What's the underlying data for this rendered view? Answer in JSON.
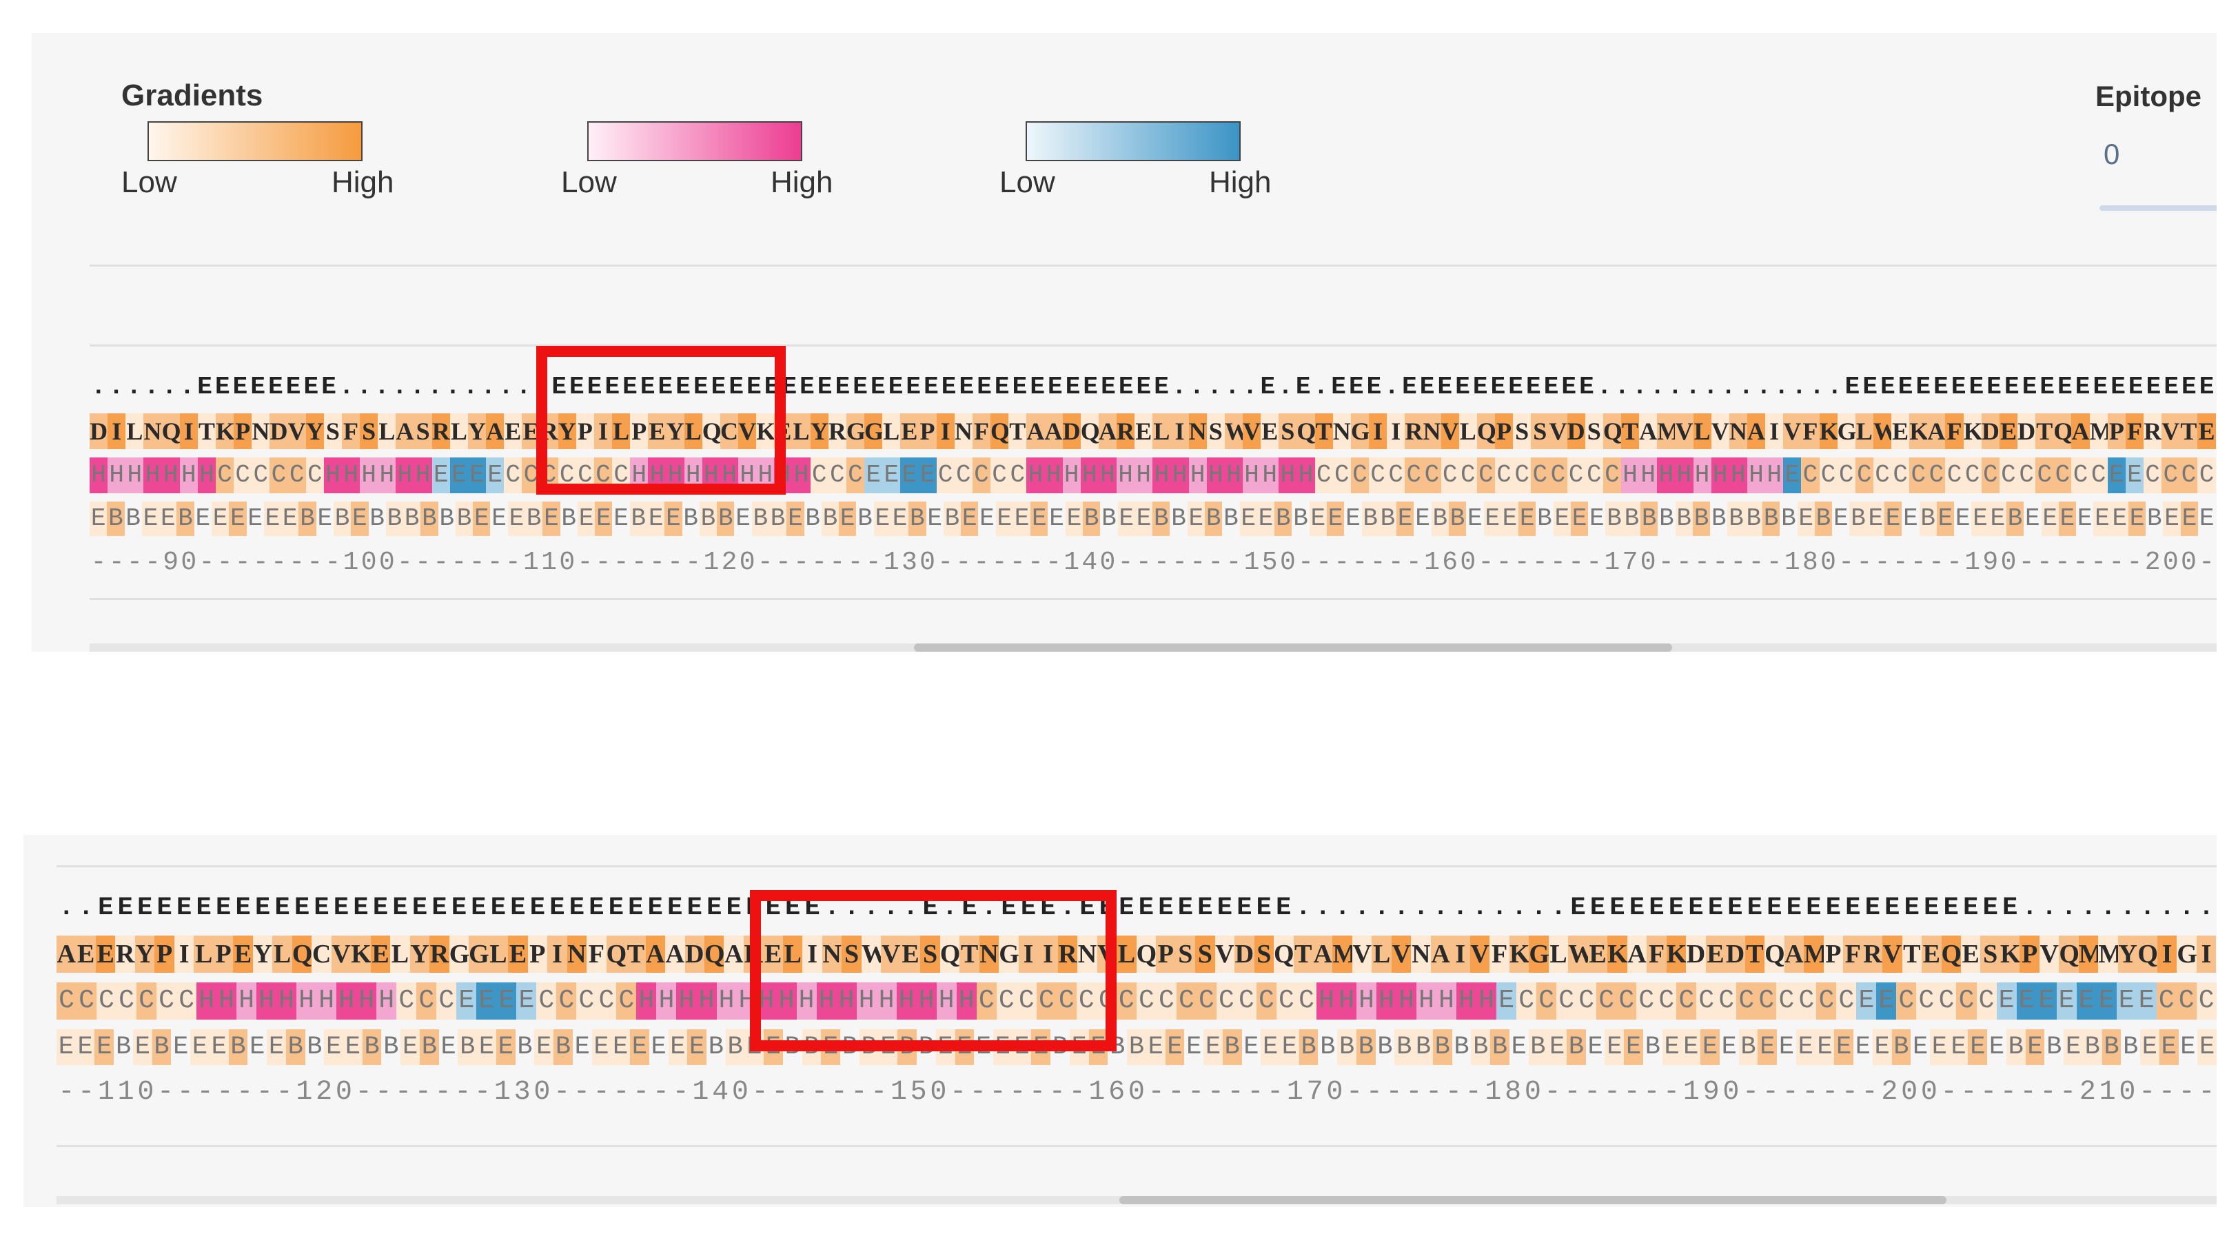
{
  "colors": {
    "panel_bg": "#f6f6f6",
    "orange_low": "#fde9d4",
    "orange_mid": "#f8c08a",
    "orange_high": "#f6a04d",
    "pink_high": "#ec4895",
    "pink_low": "#f3a6cf",
    "blue_high": "#3e96c7",
    "blue_low": "#a9d1e8",
    "highlight_box": "#ee1111"
  },
  "legend": {
    "title": "Gradients",
    "gradients": [
      {
        "name": "orange-gradient",
        "low_label": "Low",
        "high_label": "High",
        "from": "#fff6ec",
        "to": "#f59b3e"
      },
      {
        "name": "pink-gradient",
        "low_label": "Low",
        "high_label": "High",
        "from": "#fff0f7",
        "to": "#ec3d92"
      },
      {
        "name": "blue-gradient",
        "low_label": "Low",
        "high_label": "High",
        "from": "#eef6fb",
        "to": "#3b94c6"
      }
    ],
    "epitope_title": "Epitope",
    "epitope_value": "0"
  },
  "viewer_top": {
    "secondary_structure": "......EEEEEEEE............EEEEEEEEEEEEEEEEEEEEEEEEEEEEEEEEEEE.....E.E.EEE.EEEEEEEEEEE..............EEEEEEEEEEEEEEEEEEEEE",
    "sequence": "DILNQITKPNDVYSFSLASRLYAEERYPILPEYLQCVKELYRGGLEPINFQTAADQARELINSWVESQTNGIIRNVLQPSSVDSQTAMVLVNAIVFKGLWEKAFKDEDTQAMPFRVTE",
    "secondary_pred": "HHHHHHHCCCCCCHHHHHHEEEECCCCCCCHHHHHHHHHHCCCEEEECCCCCHHHHHHHHHHHHHHHHCCCCCCCCCCCCCCCCCHHHHHHHHHECCCCCCCCCCCCCCCCCEECCCC",
    "burial": "EBBEEBEEEEEEBEBEBBBBBBEEEBEBEEEBEEBBBEBBEBBEBEEBEBEEEEEEEBBEEBBEBBEEBBEEEBBEEBBEEEEBEEEBBBBBBBBBBBEBEBEEEBEEEEBEEEEEEEBEEE",
    "ruler": "----90--------100-------110-------120-------130-------140-------150-------160-------170-------180-------190-------200-"
  },
  "viewer_bottom": {
    "secondary_structure": "..EEEEEEEEEEEEEEEEEEEEEEEEEEEEEEEEEEEEE.....E.E.EEE.EEEEEEEEEEE..............EEEEEEEEEEEEEEEEEEEEEEE..........",
    "sequence": "AEERYPILPEYLQCVKELYRGGLEPINFQTAADQARELINSWVESQTNGIIRNVLQPSSVDSQTAMVLVNAIVFKGLWEKAFKDEDTQAMPFRVTEQESKPVQMMYQIGI",
    "secondary_pred": "CCCCCCCHHHHHHHHHHCCCEEEECCCCCHHHHHHHHHHHHHHHHHCCCCCCCCCCCCCCCCCHHHHHHHHHECCCCCCCCCCCCCCCCCEECCCCCEEEEEEEECCC",
    "burial": "EEEBEBEEEBEEBBEEBBEBEBEEBEBEEEEEEEBBEEBBEBBEBBEEEEEEBEEBBEEEEBEEEBBBBBBBBBBBEBEBEEEBEEEEBEEEEEEEBEEEEEBEBEBBBEEEE",
    "ruler": "--110-------120-------130-------140-------150-------160-------170-------180-------190-------200-------210----"
  }
}
